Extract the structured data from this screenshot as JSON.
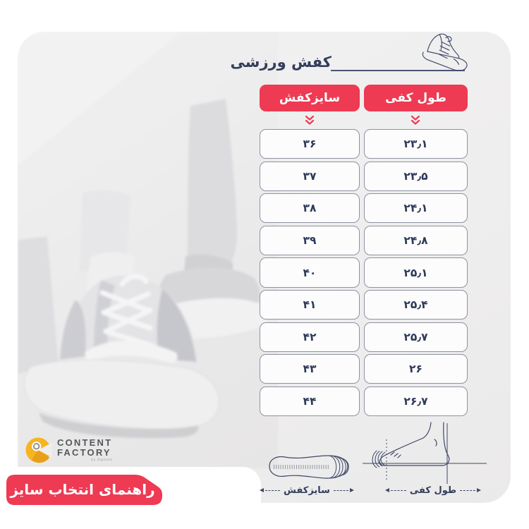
{
  "colors": {
    "accent": "#ee3a53",
    "navy": "#2e3a59",
    "navy_dark": "#333f5c",
    "card_bg": "#efeeee",
    "cell_bg": "#fcfcfc",
    "cell_border": "#8e93a3",
    "line_art": "#3d4867",
    "logo_yellow": "#f6b421",
    "logo_text": "#55565a"
  },
  "header": {
    "title": "کفش ورزشی",
    "shoe_icon": "sneaker-line-art-icon"
  },
  "table": {
    "col_size_label": "سایزکفش",
    "col_length_label": "طول کفی",
    "sort_icon": "double-chevron-down-icon",
    "rows": [
      {
        "size": "۳۶",
        "length": "۲۳٫۱"
      },
      {
        "size": "۳۷",
        "length": "۲۳٫۵"
      },
      {
        "size": "۳۸",
        "length": "۲۴٫۱"
      },
      {
        "size": "۳۹",
        "length": "۲۴٫۸"
      },
      {
        "size": "۴۰",
        "length": "۲۵٫۱"
      },
      {
        "size": "۴۱",
        "length": "۲۵٫۴"
      },
      {
        "size": "۴۲",
        "length": "۲۵٫۷"
      },
      {
        "size": "۴۳",
        "length": "۲۶"
      },
      {
        "size": "۴۴",
        "length": "۲۶٫۷"
      }
    ]
  },
  "diagrams": {
    "insole_label": "سایزکفش",
    "foot_label": "طول کفی",
    "insole_icon": "insole-top-view-icon",
    "foot_icon": "foot-side-view-icon"
  },
  "logo": {
    "line1": "CONTENT",
    "line2": "FACTORY",
    "byline": "by digikala",
    "icon": "content-factory-c-icon"
  },
  "banner": {
    "text": "راهنمای انتخاب سایز"
  }
}
